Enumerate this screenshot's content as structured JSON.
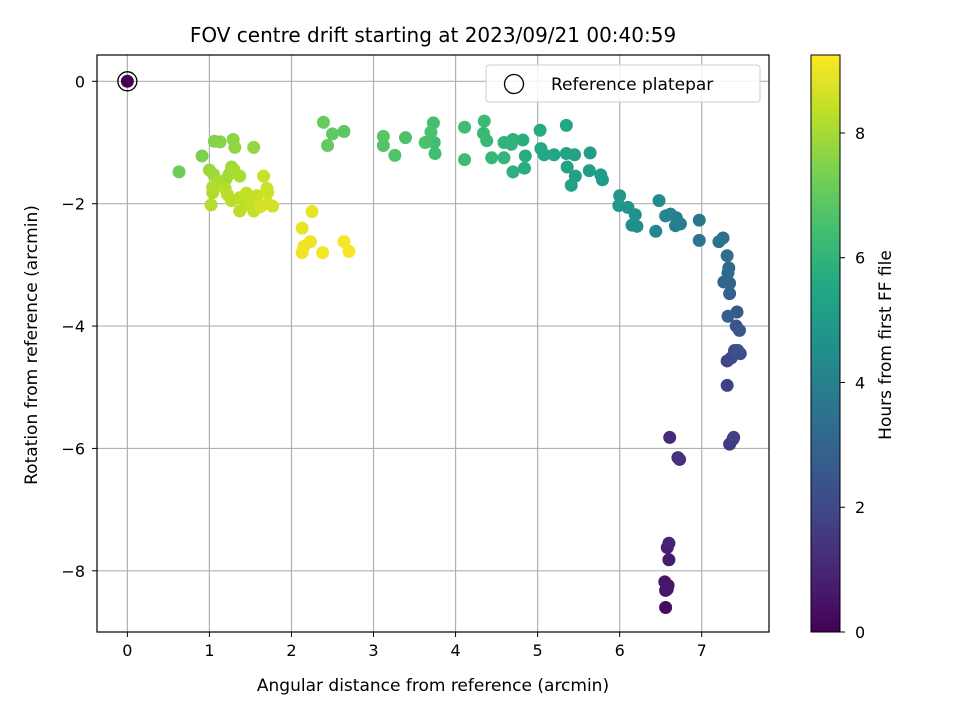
{
  "chart_data": {
    "type": "scatter",
    "title": "FOV centre drift starting at 2023/09/21 00:40:59",
    "xlabel": "Angular distance from reference (arcmin)",
    "ylabel": "Rotation from reference (arcmin)",
    "xlim": [
      -0.37,
      7.82
    ],
    "ylim": [
      -9.0,
      0.43
    ],
    "xticks": [
      "0",
      "1",
      "2",
      "3",
      "4",
      "5",
      "6",
      "7"
    ],
    "yticks": [
      "0",
      "−2",
      "−4",
      "−6",
      "−8"
    ],
    "grid": true,
    "legend": {
      "placement": "top-right",
      "entries": [
        "Reference platepar"
      ]
    },
    "reference_point": {
      "x": 0,
      "y": 0,
      "hours": 0
    },
    "colorbar": {
      "label": "Hours from first FF file",
      "colormap": "viridis",
      "range": [
        0,
        9.25
      ],
      "ticks": [
        "0",
        "2",
        "4",
        "6",
        "8"
      ]
    },
    "points": [
      [
        6.56,
        -8.6,
        0.3
      ],
      [
        6.56,
        -8.32,
        0.4
      ],
      [
        6.59,
        -8.24,
        0.5
      ],
      [
        6.55,
        -8.18,
        0.55
      ],
      [
        6.58,
        -8.3,
        0.6
      ],
      [
        6.6,
        -7.82,
        0.7
      ],
      [
        6.58,
        -7.62,
        0.8
      ],
      [
        6.6,
        -7.55,
        0.9
      ],
      [
        6.61,
        -5.82,
        1.1
      ],
      [
        6.73,
        -6.18,
        1.2
      ],
      [
        6.71,
        -6.15,
        1.3
      ],
      [
        7.34,
        -5.93,
        1.5
      ],
      [
        7.38,
        -5.85,
        1.6
      ],
      [
        7.39,
        -5.82,
        1.7
      ],
      [
        7.31,
        -4.97,
        1.8
      ],
      [
        7.31,
        -4.57,
        1.9
      ],
      [
        7.36,
        -4.52,
        2.0
      ],
      [
        7.4,
        -4.4,
        2.1
      ],
      [
        7.47,
        -4.45,
        2.2
      ],
      [
        7.44,
        -4.4,
        2.3
      ],
      [
        7.42,
        -4.0,
        2.4
      ],
      [
        7.46,
        -4.07,
        2.5
      ],
      [
        7.43,
        -3.77,
        2.6
      ],
      [
        7.32,
        -3.84,
        2.7
      ],
      [
        7.34,
        -3.47,
        2.8
      ],
      [
        7.34,
        -3.3,
        2.9
      ],
      [
        7.27,
        -3.28,
        3.0
      ],
      [
        7.32,
        -3.13,
        3.1
      ],
      [
        7.33,
        -3.05,
        3.2
      ],
      [
        7.31,
        -2.85,
        3.3
      ],
      [
        7.26,
        -2.56,
        3.4
      ],
      [
        7.21,
        -2.62,
        3.5
      ],
      [
        6.97,
        -2.6,
        3.6
      ],
      [
        6.97,
        -2.27,
        3.7
      ],
      [
        6.74,
        -2.33,
        3.8
      ],
      [
        6.69,
        -2.23,
        3.9
      ],
      [
        6.68,
        -2.36,
        4.0
      ],
      [
        6.62,
        -2.17,
        4.1
      ],
      [
        6.56,
        -2.2,
        4.2
      ],
      [
        6.44,
        -2.45,
        4.3
      ],
      [
        6.48,
        -1.95,
        4.4
      ],
      [
        6.21,
        -2.37,
        4.5
      ],
      [
        6.15,
        -2.35,
        4.6
      ],
      [
        6.19,
        -2.18,
        4.7
      ],
      [
        6.1,
        -2.06,
        4.8
      ],
      [
        5.99,
        -2.03,
        4.85
      ],
      [
        6.0,
        -1.87,
        4.9
      ],
      [
        5.79,
        -1.61,
        5.0
      ],
      [
        5.77,
        -1.53,
        5.05
      ],
      [
        5.63,
        -1.46,
        5.1
      ],
      [
        5.64,
        -1.17,
        5.15
      ],
      [
        5.46,
        -1.55,
        5.2
      ],
      [
        5.41,
        -1.7,
        5.25
      ],
      [
        5.45,
        -1.2,
        5.3
      ],
      [
        5.36,
        -1.4,
        5.35
      ],
      [
        5.35,
        -1.18,
        5.4
      ],
      [
        5.35,
        -0.72,
        5.45
      ],
      [
        5.2,
        -1.2,
        5.5
      ],
      [
        5.08,
        -1.2,
        5.55
      ],
      [
        5.04,
        -1.1,
        5.6
      ],
      [
        5.03,
        -0.8,
        5.65
      ],
      [
        4.84,
        -1.42,
        5.7
      ],
      [
        4.85,
        -1.22,
        5.75
      ],
      [
        4.82,
        -0.96,
        5.8
      ],
      [
        4.7,
        -1.48,
        5.85
      ],
      [
        4.7,
        -0.95,
        5.9
      ],
      [
        4.68,
        -1.03,
        5.95
      ],
      [
        4.59,
        -1.0,
        6.0
      ],
      [
        4.59,
        -1.25,
        6.05
      ],
      [
        4.44,
        -1.25,
        6.1
      ],
      [
        4.38,
        -0.97,
        6.15
      ],
      [
        4.34,
        -0.85,
        6.2
      ],
      [
        4.35,
        -0.65,
        6.25
      ],
      [
        4.11,
        -1.28,
        6.3
      ],
      [
        4.11,
        -0.75,
        6.35
      ],
      [
        3.75,
        -1.18,
        6.4
      ],
      [
        3.74,
        -1.0,
        6.45
      ],
      [
        3.73,
        -0.68,
        6.5
      ],
      [
        3.7,
        -0.83,
        6.55
      ],
      [
        3.63,
        -1.0,
        6.6
      ],
      [
        3.39,
        -0.92,
        6.65
      ],
      [
        3.26,
        -1.21,
        6.7
      ],
      [
        3.12,
        -1.05,
        6.75
      ],
      [
        3.12,
        -0.9,
        6.8
      ],
      [
        2.64,
        -0.82,
        6.9
      ],
      [
        2.5,
        -0.86,
        6.95
      ],
      [
        2.44,
        -1.05,
        7.0
      ],
      [
        2.39,
        -0.67,
        7.05
      ],
      [
        0.63,
        -1.48,
        7.2
      ],
      [
        0.91,
        -1.22,
        7.4
      ],
      [
        1.06,
        -0.98,
        7.5
      ],
      [
        1.13,
        -0.99,
        7.6
      ],
      [
        1.29,
        -0.95,
        7.65
      ],
      [
        1.31,
        -1.08,
        7.7
      ],
      [
        1.54,
        -1.08,
        7.75
      ],
      [
        1.0,
        -1.45,
        7.85
      ],
      [
        1.05,
        -1.52,
        7.85
      ],
      [
        1.27,
        -1.4,
        7.9
      ],
      [
        1.24,
        -1.52,
        7.95
      ],
      [
        1.2,
        -1.6,
        8.0
      ],
      [
        1.3,
        -1.45,
        8.05
      ],
      [
        1.37,
        -1.55,
        8.05
      ],
      [
        1.1,
        -1.65,
        8.1
      ],
      [
        1.04,
        -1.73,
        8.1
      ],
      [
        1.04,
        -1.82,
        8.15
      ],
      [
        1.02,
        -2.02,
        8.2
      ],
      [
        1.19,
        -1.75,
        8.2
      ],
      [
        1.22,
        -1.85,
        8.25
      ],
      [
        1.27,
        -1.95,
        8.25
      ],
      [
        1.37,
        -1.9,
        8.3
      ],
      [
        1.37,
        -2.12,
        8.3
      ],
      [
        1.44,
        -2.02,
        8.35
      ],
      [
        1.54,
        -2.12,
        8.4
      ],
      [
        1.45,
        -1.83,
        8.4
      ],
      [
        1.52,
        -1.97,
        8.45
      ],
      [
        1.58,
        -1.87,
        8.45
      ],
      [
        1.66,
        -1.55,
        8.5
      ],
      [
        1.7,
        -1.75,
        8.5
      ],
      [
        1.71,
        -1.82,
        8.55
      ],
      [
        1.71,
        -2.0,
        8.6
      ],
      [
        1.77,
        -2.04,
        8.65
      ],
      [
        1.62,
        -2.05,
        8.65
      ],
      [
        2.25,
        -2.13,
        8.9
      ],
      [
        2.13,
        -2.4,
        8.95
      ],
      [
        2.23,
        -2.62,
        9.0
      ],
      [
        2.15,
        -2.7,
        9.0
      ],
      [
        2.13,
        -2.8,
        9.05
      ],
      [
        2.38,
        -2.8,
        9.1
      ],
      [
        2.64,
        -2.62,
        9.1
      ],
      [
        2.7,
        -2.78,
        9.15
      ]
    ]
  }
}
